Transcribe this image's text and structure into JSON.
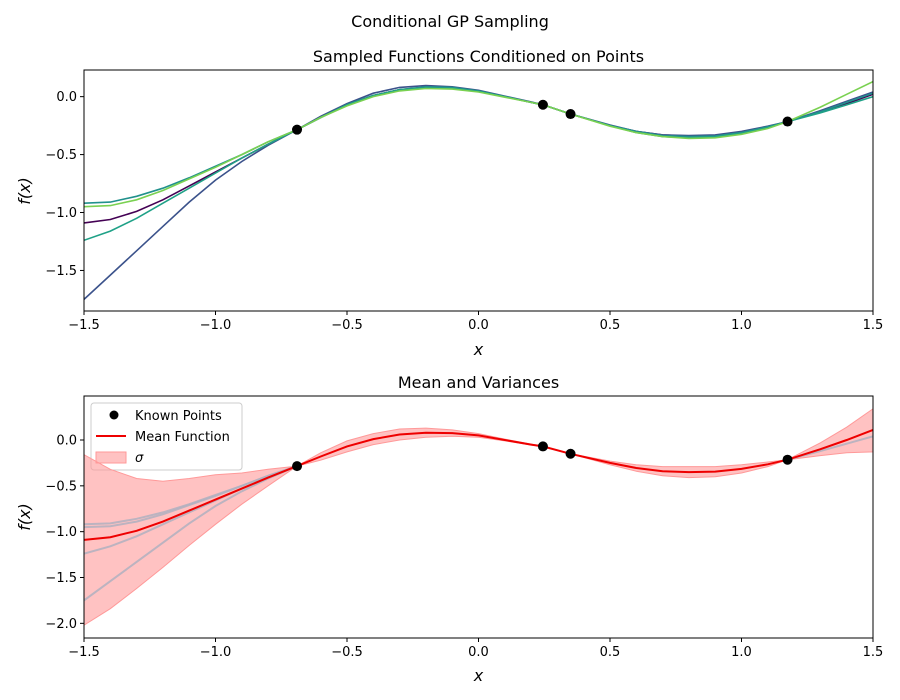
{
  "figure_title": "Conditional GP Sampling",
  "chart_data": [
    {
      "type": "line",
      "title": "Sampled Functions Conditioned on Points",
      "xlabel": "x",
      "ylabel": "f(x)",
      "xlim": [
        -1.5,
        1.5
      ],
      "ylim": [
        -1.85,
        0.23
      ],
      "xticks": [
        -1.5,
        -1.0,
        -0.5,
        0.0,
        0.5,
        1.0,
        1.5
      ],
      "xtick_labels": [
        "−1.5",
        "−1.0",
        "−0.5",
        "0.0",
        "0.5",
        "1.0",
        "1.5"
      ],
      "yticks": [
        -1.5,
        -1.0,
        -0.5,
        0.0
      ],
      "ytick_labels": [
        "−1.5",
        "−1.0",
        "−0.5",
        "0.0"
      ],
      "known_points": {
        "x": [
          -0.69,
          0.245,
          0.35,
          1.175
        ],
        "y": [
          -0.285,
          -0.07,
          -0.15,
          -0.215
        ]
      },
      "series": [
        {
          "color": "#440154",
          "x": [
            -1.5,
            -1.4,
            -1.3,
            -1.2,
            -1.1,
            -1.0,
            -0.9,
            -0.8,
            -0.69,
            -0.6,
            -0.5,
            -0.4,
            -0.3,
            -0.2,
            -0.1,
            0.0,
            0.1,
            0.2,
            0.245,
            0.35,
            0.5,
            0.6,
            0.7,
            0.8,
            0.9,
            1.0,
            1.1,
            1.175,
            1.3,
            1.4,
            1.5
          ],
          "y": [
            -1.09,
            -1.06,
            -0.99,
            -0.89,
            -0.77,
            -0.65,
            -0.53,
            -0.41,
            -0.285,
            -0.18,
            -0.07,
            0.01,
            0.06,
            0.08,
            0.08,
            0.05,
            0.0,
            -0.05,
            -0.07,
            -0.15,
            -0.25,
            -0.3,
            -0.33,
            -0.34,
            -0.335,
            -0.31,
            -0.26,
            -0.215,
            -0.13,
            -0.06,
            0.02
          ]
        },
        {
          "color": "#3b528b",
          "x": [
            -1.5,
            -1.4,
            -1.3,
            -1.2,
            -1.1,
            -1.0,
            -0.9,
            -0.8,
            -0.69,
            -0.6,
            -0.5,
            -0.4,
            -0.3,
            -0.2,
            -0.1,
            0.0,
            0.1,
            0.2,
            0.245,
            0.35,
            0.5,
            0.6,
            0.7,
            0.8,
            0.9,
            1.0,
            1.1,
            1.175,
            1.3,
            1.4,
            1.5
          ],
          "y": [
            -1.75,
            -1.54,
            -1.33,
            -1.12,
            -0.91,
            -0.72,
            -0.56,
            -0.42,
            -0.285,
            -0.17,
            -0.06,
            0.03,
            0.08,
            0.095,
            0.085,
            0.055,
            0.005,
            -0.045,
            -0.07,
            -0.15,
            -0.245,
            -0.3,
            -0.33,
            -0.335,
            -0.33,
            -0.3,
            -0.255,
            -0.215,
            -0.12,
            -0.04,
            0.04
          ]
        },
        {
          "color": "#21918c",
          "x": [
            -1.5,
            -1.4,
            -1.3,
            -1.2,
            -1.1,
            -1.0,
            -0.9,
            -0.8,
            -0.69,
            -0.6,
            -0.5,
            -0.4,
            -0.3,
            -0.2,
            -0.1,
            0.0,
            0.1,
            0.2,
            0.245,
            0.35,
            0.5,
            0.6,
            0.7,
            0.8,
            0.9,
            1.0,
            1.1,
            1.175,
            1.3,
            1.4,
            1.5
          ],
          "y": [
            -0.92,
            -0.91,
            -0.86,
            -0.79,
            -0.7,
            -0.6,
            -0.5,
            -0.39,
            -0.285,
            -0.18,
            -0.07,
            0.01,
            0.06,
            0.085,
            0.08,
            0.05,
            0.0,
            -0.05,
            -0.07,
            -0.15,
            -0.25,
            -0.3,
            -0.335,
            -0.345,
            -0.34,
            -0.31,
            -0.26,
            -0.215,
            -0.13,
            -0.05,
            0.03
          ]
        },
        {
          "color": "#1fa187",
          "x": [
            -1.5,
            -1.4,
            -1.3,
            -1.2,
            -1.1,
            -1.0,
            -0.9,
            -0.8,
            -0.69,
            -0.6,
            -0.5,
            -0.4,
            -0.3,
            -0.2,
            -0.1,
            0.0,
            0.1,
            0.2,
            0.245,
            0.35,
            0.5,
            0.6,
            0.7,
            0.8,
            0.9,
            1.0,
            1.1,
            1.175,
            1.3,
            1.4,
            1.5
          ],
          "y": [
            -1.24,
            -1.16,
            -1.05,
            -0.92,
            -0.79,
            -0.66,
            -0.53,
            -0.41,
            -0.285,
            -0.18,
            -0.07,
            0.01,
            0.06,
            0.075,
            0.07,
            0.045,
            0.0,
            -0.05,
            -0.07,
            -0.15,
            -0.25,
            -0.31,
            -0.345,
            -0.355,
            -0.345,
            -0.315,
            -0.265,
            -0.215,
            -0.14,
            -0.07,
            0.0
          ]
        },
        {
          "color": "#7ad151",
          "x": [
            -1.5,
            -1.4,
            -1.3,
            -1.2,
            -1.1,
            -1.0,
            -0.9,
            -0.8,
            -0.69,
            -0.6,
            -0.5,
            -0.4,
            -0.3,
            -0.2,
            -0.1,
            0.0,
            0.1,
            0.2,
            0.245,
            0.35,
            0.5,
            0.6,
            0.7,
            0.8,
            0.9,
            1.0,
            1.1,
            1.175,
            1.3,
            1.4,
            1.5
          ],
          "y": [
            -0.95,
            -0.94,
            -0.89,
            -0.81,
            -0.71,
            -0.61,
            -0.5,
            -0.39,
            -0.285,
            -0.18,
            -0.08,
            0.0,
            0.05,
            0.07,
            0.065,
            0.04,
            -0.005,
            -0.05,
            -0.07,
            -0.15,
            -0.255,
            -0.31,
            -0.345,
            -0.36,
            -0.355,
            -0.325,
            -0.275,
            -0.215,
            -0.09,
            0.02,
            0.13
          ]
        }
      ]
    },
    {
      "type": "line",
      "title": "Mean and Variances",
      "xlabel": "x",
      "ylabel": "f(x)",
      "xlim": [
        -1.5,
        1.5
      ],
      "ylim": [
        -2.16,
        0.48
      ],
      "xticks": [
        -1.5,
        -1.0,
        -0.5,
        0.0,
        0.5,
        1.0,
        1.5
      ],
      "xtick_labels": [
        "−1.5",
        "−1.0",
        "−0.5",
        "0.0",
        "0.5",
        "1.0",
        "1.5"
      ],
      "yticks": [
        -2.0,
        -1.5,
        -1.0,
        -0.5,
        0.0
      ],
      "ytick_labels": [
        "−2.0",
        "−1.5",
        "−1.0",
        "−0.5",
        "0.0"
      ],
      "legend": {
        "placement": "top-left",
        "entries": [
          "Known Points",
          "Mean Function",
          "σ"
        ]
      },
      "known_points": {
        "x": [
          -0.69,
          0.245,
          0.35,
          1.175
        ],
        "y": [
          -0.285,
          -0.07,
          -0.15,
          -0.215
        ]
      },
      "mean_color": "#ee0000",
      "band_color": "#ff9999",
      "mean": {
        "x": [
          -1.5,
          -1.4,
          -1.3,
          -1.2,
          -1.1,
          -1.0,
          -0.9,
          -0.8,
          -0.69,
          -0.6,
          -0.5,
          -0.4,
          -0.3,
          -0.2,
          -0.1,
          0.0,
          0.1,
          0.2,
          0.245,
          0.35,
          0.5,
          0.6,
          0.7,
          0.8,
          0.9,
          1.0,
          1.1,
          1.175,
          1.3,
          1.4,
          1.5
        ],
        "y": [
          -1.09,
          -1.06,
          -0.99,
          -0.89,
          -0.77,
          -0.65,
          -0.53,
          -0.41,
          -0.285,
          -0.18,
          -0.07,
          0.01,
          0.06,
          0.08,
          0.075,
          0.05,
          0.0,
          -0.05,
          -0.07,
          -0.15,
          -0.25,
          -0.305,
          -0.34,
          -0.35,
          -0.345,
          -0.315,
          -0.265,
          -0.215,
          -0.1,
          0.0,
          0.11
        ],
        "lower": [
          -2.02,
          -1.84,
          -1.62,
          -1.39,
          -1.15,
          -0.92,
          -0.7,
          -0.5,
          -0.285,
          -0.22,
          -0.13,
          -0.05,
          0.0,
          0.03,
          0.04,
          0.03,
          -0.01,
          -0.055,
          -0.07,
          -0.15,
          -0.27,
          -0.34,
          -0.39,
          -0.41,
          -0.4,
          -0.36,
          -0.29,
          -0.215,
          -0.17,
          -0.14,
          -0.13
        ],
        "upper": [
          -0.16,
          -0.32,
          -0.42,
          -0.45,
          -0.42,
          -0.38,
          -0.36,
          -0.32,
          -0.285,
          -0.14,
          -0.01,
          0.07,
          0.12,
          0.13,
          0.11,
          0.07,
          0.01,
          -0.045,
          -0.07,
          -0.15,
          -0.23,
          -0.27,
          -0.29,
          -0.29,
          -0.29,
          -0.27,
          -0.24,
          -0.215,
          -0.03,
          0.14,
          0.34
        ]
      },
      "samples_color": "#b0b0c0",
      "samples": [
        {
          "x": [
            -1.5,
            -1.4,
            -1.3,
            -1.2,
            -1.1,
            -1.0,
            -0.9,
            -0.8,
            -0.69
          ],
          "y": [
            -1.75,
            -1.54,
            -1.33,
            -1.12,
            -0.91,
            -0.72,
            -0.56,
            -0.42,
            -0.285
          ]
        },
        {
          "x": [
            -1.5,
            -1.4,
            -1.3,
            -1.2,
            -1.1,
            -1.0,
            -0.9,
            -0.8,
            -0.69
          ],
          "y": [
            -0.92,
            -0.91,
            -0.86,
            -0.79,
            -0.7,
            -0.6,
            -0.5,
            -0.39,
            -0.285
          ]
        },
        {
          "x": [
            -1.5,
            -1.4,
            -1.3,
            -1.2,
            -1.1,
            -1.0,
            -0.9,
            -0.8,
            -0.69
          ],
          "y": [
            -1.24,
            -1.16,
            -1.05,
            -0.92,
            -0.79,
            -0.66,
            -0.53,
            -0.41,
            -0.285
          ]
        },
        {
          "x": [
            -1.5,
            -1.4,
            -1.3,
            -1.2,
            -1.1,
            -1.0,
            -0.9,
            -0.8,
            -0.69
          ],
          "y": [
            -0.95,
            -0.94,
            -0.89,
            -0.81,
            -0.71,
            -0.61,
            -0.5,
            -0.39,
            -0.285
          ]
        },
        {
          "x": [
            1.175,
            1.3,
            1.4,
            1.5
          ],
          "y": [
            -0.215,
            -0.12,
            -0.04,
            0.04
          ]
        }
      ]
    }
  ]
}
